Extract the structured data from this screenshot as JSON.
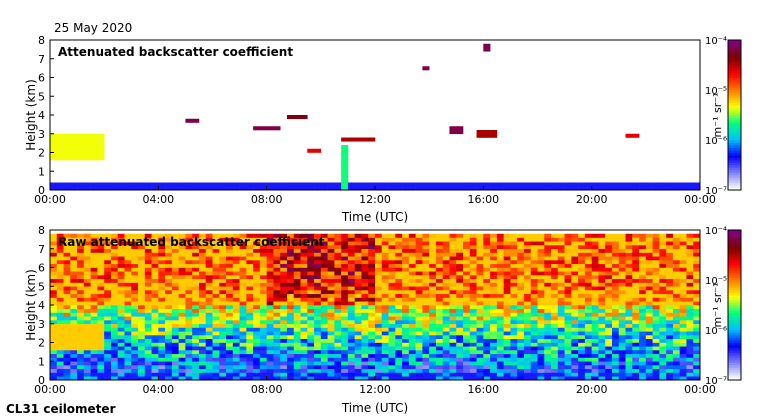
{
  "date_label": "25 May 2020",
  "footer_label": "CL31 ceilometer",
  "colors": {
    "ramp": [
      "#ffffff",
      "#7f7fff",
      "#0000ff",
      "#00bfff",
      "#00ff7f",
      "#ffff00",
      "#ff7f00",
      "#ff0000",
      "#7f0000",
      "#7f007f"
    ]
  },
  "chart_data": [
    {
      "type": "heatmap",
      "title": "Attenuated backscatter coefficient",
      "xlabel": "Time (UTC)",
      "ylabel": "Height (km)",
      "x_ticks": [
        "00:00",
        "04:00",
        "08:00",
        "12:00",
        "16:00",
        "20:00",
        "00:00"
      ],
      "y_ticks": [
        "0",
        "1",
        "2",
        "3",
        "4",
        "5",
        "6",
        "7",
        "8"
      ],
      "xlim_hours": [
        0,
        24
      ],
      "ylim_km": [
        0,
        8
      ],
      "colorbar": {
        "label": "m⁻¹ sr⁻¹",
        "scale": "log",
        "range": [
          1e-07,
          0.0001
        ],
        "ticks": [
          "10⁻⁷",
          "10⁻⁶",
          "10⁻⁵",
          "10⁻⁴"
        ]
      },
      "features": [
        {
          "name": "surface aerosol layer",
          "t0": 0,
          "t1": 24,
          "h_top_km": 0.35,
          "level": 0.2
        },
        {
          "name": "low cloud / aerosol",
          "t0": 0,
          "t1": 2.0,
          "h_bottom_km": 1.6,
          "h_top_km": 2.9,
          "level": 0.55
        },
        {
          "name": "cloud",
          "t0": 5.0,
          "t1": 5.6,
          "h_km": 3.7,
          "level": 0.95
        },
        {
          "name": "cloud",
          "t0": 7.6,
          "t1": 8.5,
          "h_km": 3.3,
          "level": 0.95
        },
        {
          "name": "cloud",
          "t0": 8.8,
          "t1": 9.6,
          "h_km": 3.9,
          "level": 0.9
        },
        {
          "name": "cloud",
          "t0": 9.6,
          "t1": 10.1,
          "h_km": 2.1,
          "level": 0.8
        },
        {
          "name": "cloud",
          "t0": 10.8,
          "t1": 12.0,
          "h_km": 2.7,
          "level": 0.85
        },
        {
          "name": "precipitation",
          "t0": 10.8,
          "t1": 11.0,
          "h_bottom_km": 0.1,
          "h_top_km": 2.3,
          "level": 0.45
        },
        {
          "name": "cloud",
          "t0": 13.7,
          "t1": 14.0,
          "h_km": 6.5,
          "level": 0.95
        },
        {
          "name": "cloud",
          "t0": 14.7,
          "t1": 15.3,
          "h_km": 3.2,
          "level": 0.95
        },
        {
          "name": "cloud",
          "t0": 15.8,
          "t1": 16.4,
          "h_km": 3.0,
          "level": 0.85
        },
        {
          "name": "cloud",
          "t0": 16.0,
          "t1": 16.3,
          "h_km": 7.6,
          "level": 0.95
        },
        {
          "name": "cloud",
          "t0": 21.2,
          "t1": 21.8,
          "h_km": 2.9,
          "level": 0.8
        }
      ]
    },
    {
      "type": "heatmap",
      "title": "Raw attenuated backscatter coefficient",
      "xlabel": "Time (UTC)",
      "ylabel": "Height (km)",
      "x_ticks": [
        "00:00",
        "04:00",
        "08:00",
        "12:00",
        "16:00",
        "20:00",
        "00:00"
      ],
      "y_ticks": [
        "0",
        "1",
        "2",
        "3",
        "4",
        "5",
        "6",
        "7",
        "8"
      ],
      "xlim_hours": [
        0,
        24
      ],
      "ylim_km": [
        0,
        8
      ],
      "colorbar": {
        "label": "m⁻¹ sr⁻¹",
        "scale": "log",
        "range": [
          1e-07,
          0.0001
        ],
        "ticks": [
          "10⁻⁷",
          "10⁻⁶",
          "10⁻⁵",
          "10⁻⁴"
        ]
      },
      "features": [
        {
          "name": "noise-dominated upper range",
          "t0": 0,
          "t1": 24,
          "h_bottom_km": 4.0,
          "h_top_km": 7.7,
          "level": 0.6
        },
        {
          "name": "surface aerosol layer",
          "t0": 0,
          "t1": 24,
          "h_top_km": 0.35,
          "level": 0.2
        },
        {
          "name": "low cloud / aerosol",
          "t0": 0,
          "t1": 2.0,
          "h_bottom_km": 1.6,
          "h_top_km": 2.9,
          "level": 0.6
        }
      ]
    }
  ]
}
